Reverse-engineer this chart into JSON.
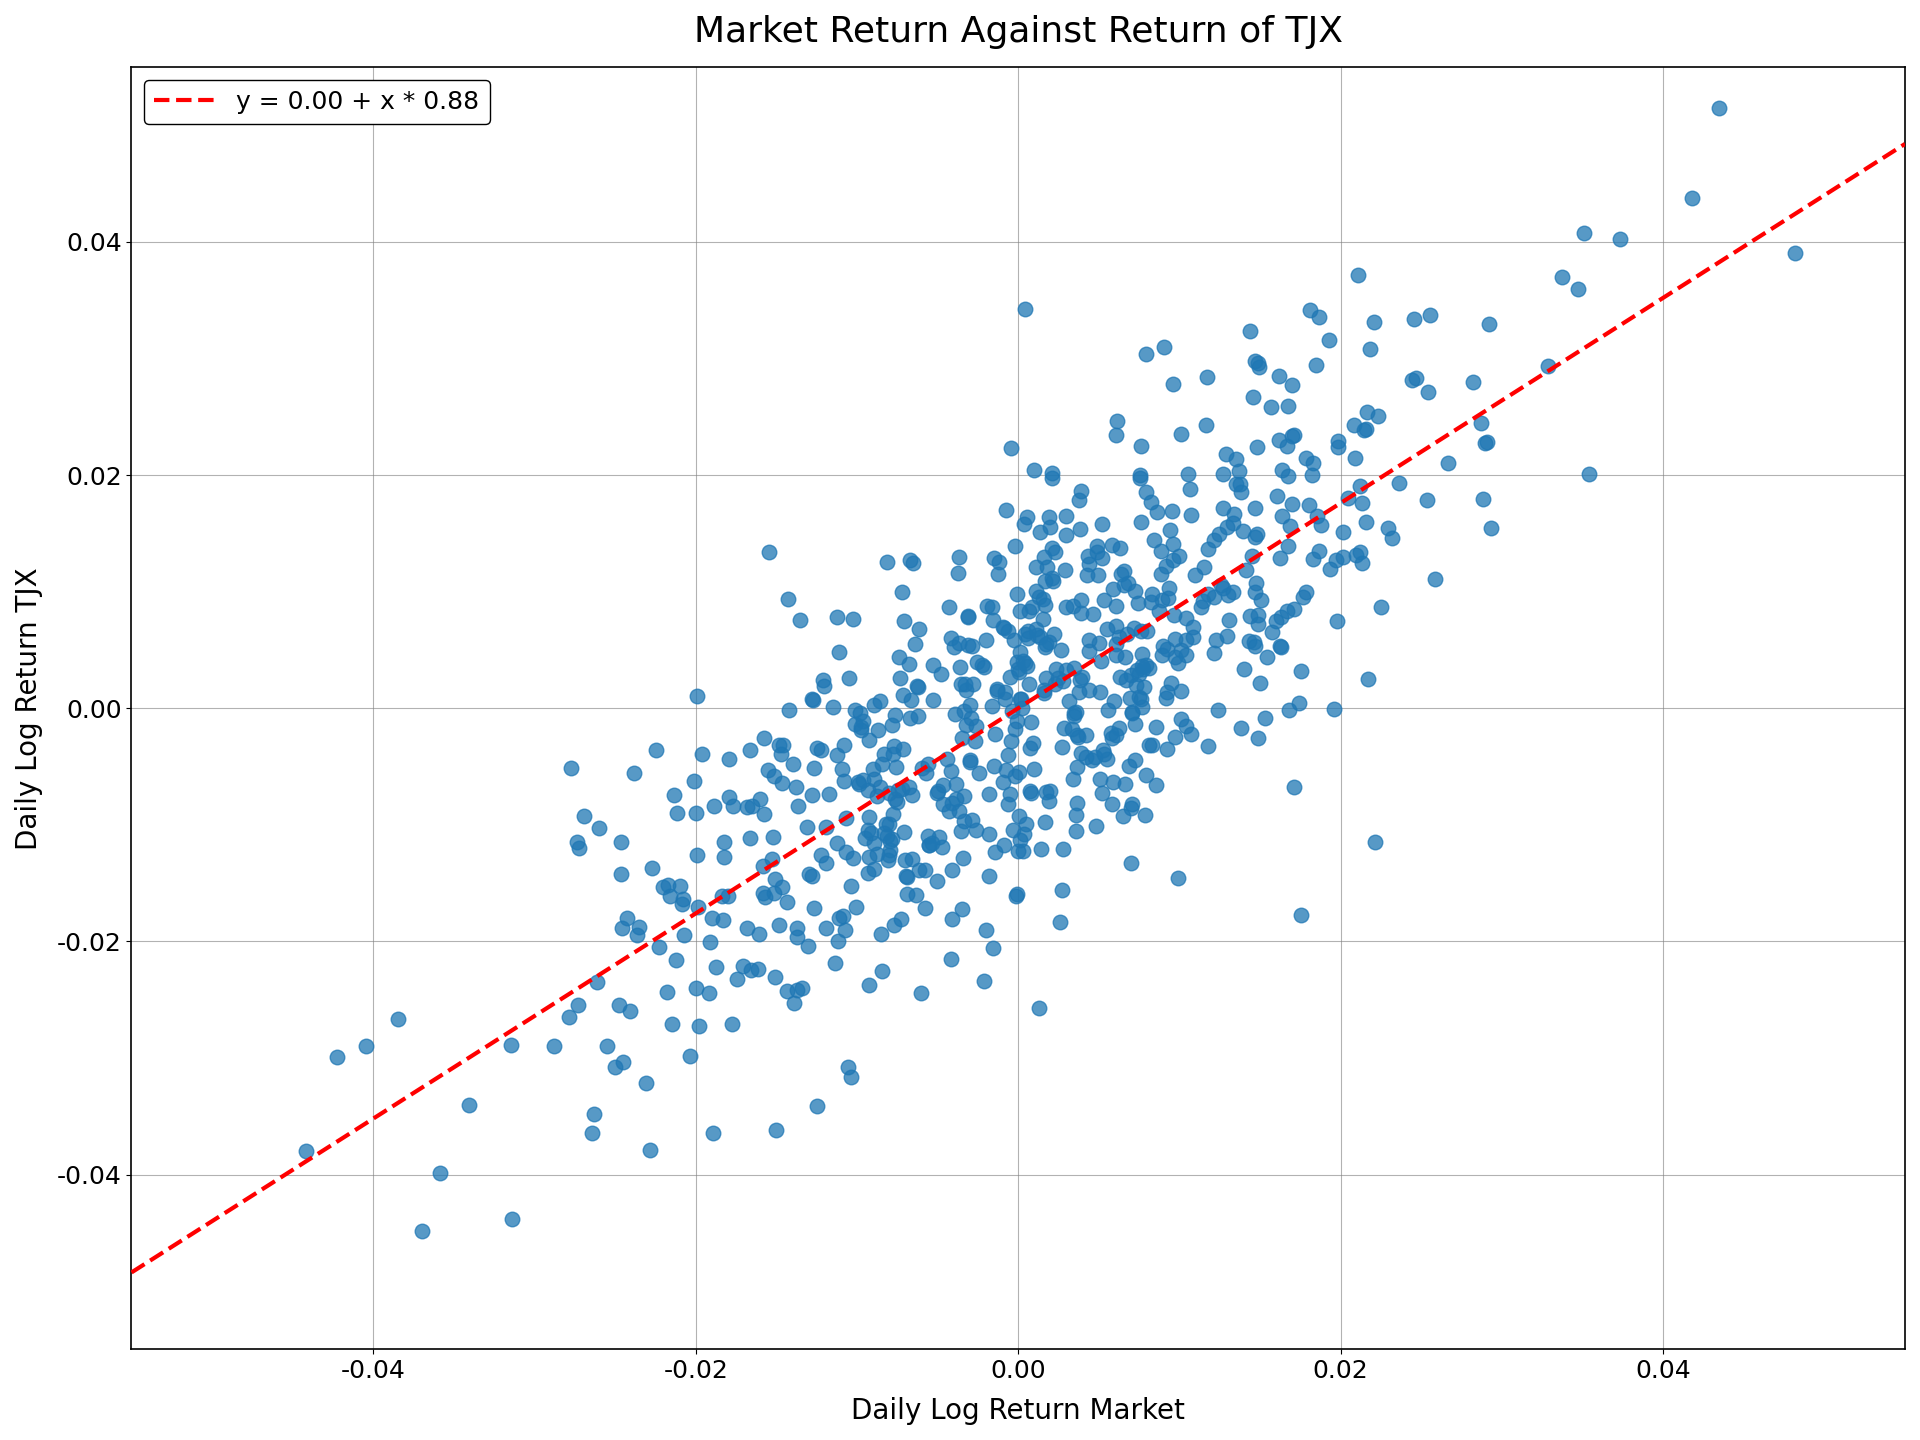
{
  "title": "Market Return Against Return of TJX",
  "xlabel": "Daily Log Return Market",
  "ylabel": "Daily Log Return TJX",
  "legend_label": "y = 0.00 + x * 0.88",
  "intercept": 0.0,
  "slope": 0.88,
  "xlim": [
    -0.055,
    0.055
  ],
  "ylim": [
    -0.055,
    0.055
  ],
  "xticks": [
    -0.04,
    -0.02,
    0.0,
    0.02,
    0.04
  ],
  "yticks": [
    -0.04,
    -0.02,
    0.0,
    0.02,
    0.04
  ],
  "scatter_color": "#1f77b4",
  "line_color": "red",
  "marker_size": 110,
  "marker_alpha": 0.75,
  "title_fontsize": 26,
  "label_fontsize": 20,
  "tick_fontsize": 18,
  "legend_fontsize": 18,
  "n_points": 750,
  "market_std": 0.013,
  "noise_std": 0.009,
  "seed": 17
}
